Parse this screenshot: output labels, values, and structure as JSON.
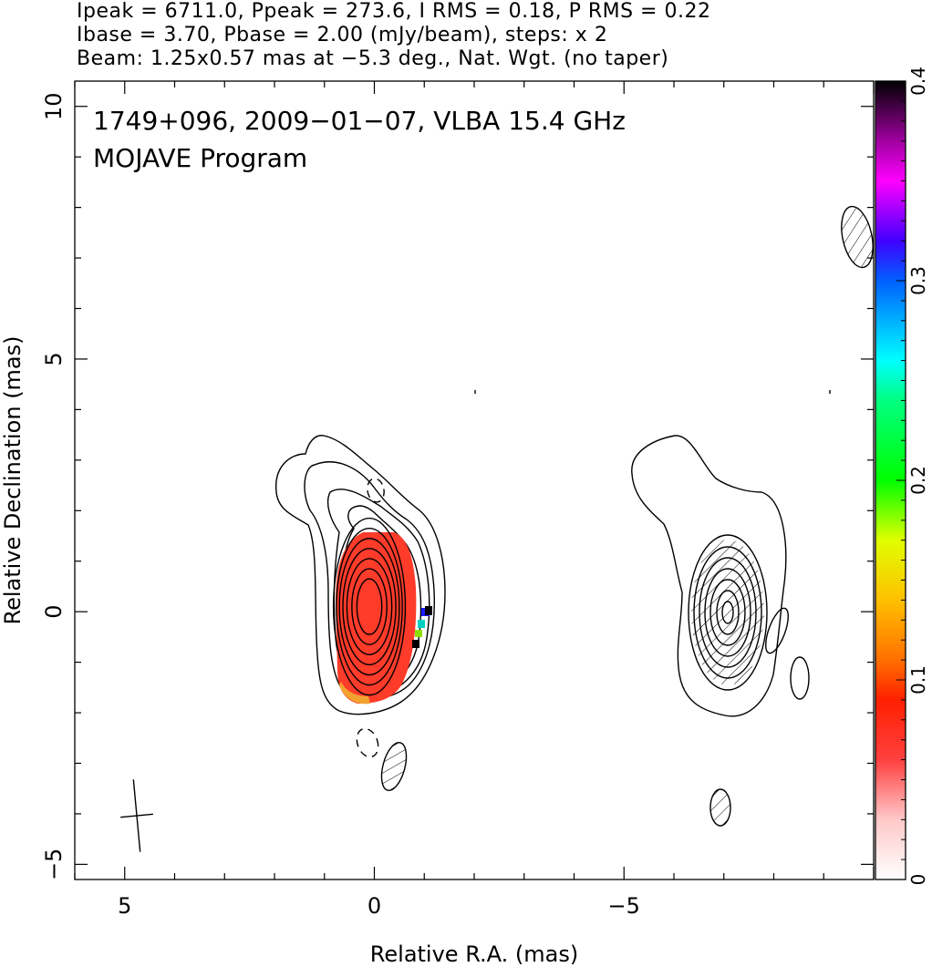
{
  "header": {
    "line1": "Ipeak = 6711.0, Ppeak = 273.6, I RMS = 0.18, P RMS = 0.22",
    "line2": "Ibase = 3.70, Pbase = 2.00 (mJy/beam), steps: x 2",
    "line3": "Beam: 1.25x0.57 mas at −5.3 deg., Nat. Wgt. (no taper)"
  },
  "chart_data": {
    "type": "contour",
    "annotations": [
      "1749+096, 2009−01−07, VLBA 15.4 GHz",
      "MOJAVE Program"
    ],
    "xlabel": "Relative R.A. (mas)",
    "ylabel": "Relative Declination (mas)",
    "xlim": [
      6.0,
      -10.0
    ],
    "ylim": [
      -5.3,
      10.5
    ],
    "x_ticks": [
      {
        "v": 5,
        "label": "5"
      },
      {
        "v": 0,
        "label": "0"
      },
      {
        "v": -5,
        "label": "−5"
      }
    ],
    "y_ticks": [
      {
        "v": 10,
        "label": "10"
      },
      {
        "v": 5,
        "label": "5"
      },
      {
        "v": 0,
        "label": "0"
      },
      {
        "v": -5,
        "label": "−5"
      }
    ],
    "colorbar": {
      "range": [
        0,
        0.4
      ],
      "ticks": [
        {
          "v": 0,
          "label": "0"
        },
        {
          "v": 0.1,
          "label": "0.1"
        },
        {
          "v": 0.2,
          "label": "0.2"
        },
        {
          "v": 0.3,
          "label": "0.3"
        },
        {
          "v": 0.4,
          "label": "0.4"
        }
      ],
      "stops": [
        {
          "v": 0.0,
          "color": "#ffffff"
        },
        {
          "v": 0.03,
          "color": "#ffc8c8"
        },
        {
          "v": 0.06,
          "color": "#ff4040"
        },
        {
          "v": 0.09,
          "color": "#ff2000"
        },
        {
          "v": 0.11,
          "color": "#ff7000"
        },
        {
          "v": 0.14,
          "color": "#ffc000"
        },
        {
          "v": 0.17,
          "color": "#e0ff00"
        },
        {
          "v": 0.2,
          "color": "#00ff00"
        },
        {
          "v": 0.24,
          "color": "#00ff80"
        },
        {
          "v": 0.26,
          "color": "#00ffff"
        },
        {
          "v": 0.3,
          "color": "#0060ff"
        },
        {
          "v": 0.32,
          "color": "#4000ff"
        },
        {
          "v": 0.35,
          "color": "#ff00ff"
        },
        {
          "v": 0.37,
          "color": "#a000a0"
        },
        {
          "v": 0.4,
          "color": "#000000"
        }
      ]
    },
    "colors": {
      "core_fill": "#ff3b2a",
      "core_edge": "#f2a230"
    },
    "core_center": [
      0.1,
      0.1
    ],
    "core_contours_mas": [
      {
        "a": 0.25,
        "b": 0.55
      },
      {
        "a": 0.35,
        "b": 0.75
      },
      {
        "a": 0.45,
        "b": 0.95
      },
      {
        "a": 0.53,
        "b": 1.15
      },
      {
        "a": 0.6,
        "b": 1.35
      },
      {
        "a": 0.66,
        "b": 1.55
      },
      {
        "a": 0.72,
        "b": 1.75
      }
    ],
    "beam": {
      "major_mas": 1.25,
      "minor_mas": 0.57,
      "pa_deg": -5.3
    }
  }
}
